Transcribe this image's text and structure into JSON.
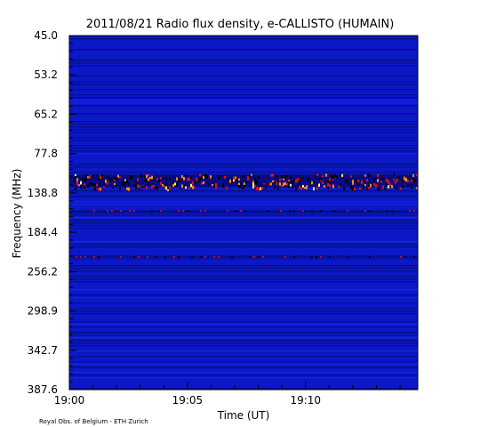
{
  "chart_data": {
    "type": "heatmap",
    "title": "2011/08/21  Radio flux density, e-CALLISTO (HUMAIN)",
    "xlabel": "Time (UT)",
    "ylabel": "Frequency (MHz)",
    "x_tick_labels": [
      "19:00",
      "19:05",
      "19:10"
    ],
    "x_tick_minutes": [
      0,
      5,
      10
    ],
    "xlim_minutes": [
      0,
      14.75
    ],
    "y_tick_labels": [
      "45.0",
      "53.2",
      "65.2",
      "77.8",
      "138.8",
      "184.4",
      "256.2",
      "298.9",
      "342.7",
      "387.6"
    ],
    "ylim_mhz": [
      45.0,
      387.6
    ],
    "y_axis_inverted": true,
    "colormap": {
      "background": "#0a18c8",
      "stripe_dark": "#050a80",
      "stripe_light": "#1a2ae8",
      "burst_black": "#000000",
      "burst_red": "#e01010",
      "burst_orange": "#ff8a10",
      "burst_yellow": "#ffff60"
    },
    "interference_bands": [
      {
        "center_mhz": 120,
        "intensity": "high"
      },
      {
        "center_mhz": 160,
        "intensity": "medium"
      },
      {
        "center_mhz": 230,
        "intensity": "medium"
      }
    ],
    "credit": "Royal Obs. of Belgium - ETH Zurich"
  }
}
